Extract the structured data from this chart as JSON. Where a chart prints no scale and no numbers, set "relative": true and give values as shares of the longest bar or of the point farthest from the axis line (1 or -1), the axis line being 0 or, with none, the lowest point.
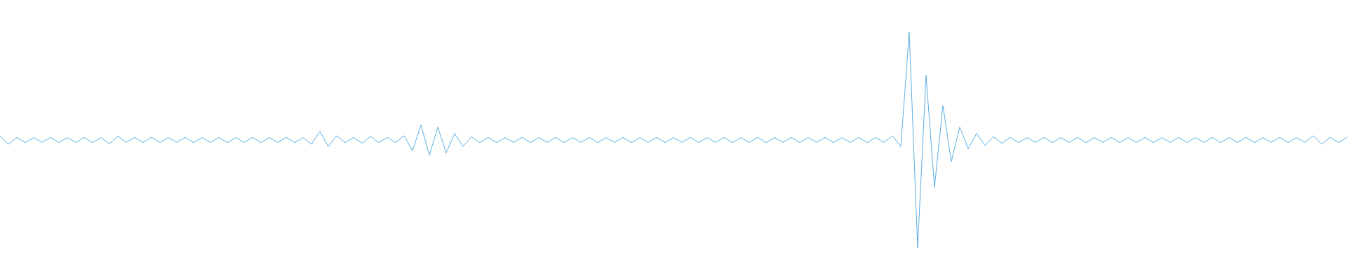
{
  "chart_data": {
    "type": "line",
    "relative": true,
    "categories": [
      null,
      null,
      null,
      null,
      null,
      null,
      null,
      null,
      null,
      null,
      null,
      null,
      null,
      null,
      null,
      null,
      null,
      null,
      null,
      null,
      null,
      null,
      null,
      null,
      null,
      null,
      null,
      null,
      null,
      null,
      null,
      null,
      null,
      null,
      null,
      null,
      null,
      null,
      null,
      null,
      null,
      null,
      null,
      null,
      null,
      null,
      null,
      null,
      null,
      null,
      null,
      null,
      null,
      null,
      null,
      null,
      null,
      null,
      null,
      null,
      null,
      null,
      null,
      null,
      null,
      null,
      null,
      null,
      null,
      null,
      null,
      null,
      null,
      null,
      null,
      null,
      null,
      null,
      null,
      null,
      null,
      null,
      null,
      null,
      null,
      null,
      null,
      null,
      null,
      null,
      null,
      null,
      null,
      null,
      null,
      null,
      null,
      null,
      null,
      null,
      null,
      null,
      null,
      null,
      null,
      null,
      null,
      null,
      null,
      null,
      null,
      null,
      null,
      null,
      null,
      null,
      null,
      null,
      null,
      null,
      null,
      null,
      null,
      null,
      null,
      null,
      null,
      null,
      null,
      null,
      null,
      null,
      null,
      null,
      null,
      null,
      null,
      null,
      null,
      null,
      null,
      null,
      null,
      null,
      null,
      null,
      null,
      null,
      null,
      null,
      null,
      null,
      null,
      null,
      null,
      null,
      null,
      null,
      null,
      null,
      null
    ],
    "series": [
      {
        "color": "#5dade2",
        "values": [
          0.52,
          0.48,
          0.512,
          0.488,
          0.511,
          0.489,
          0.512,
          0.488,
          0.511,
          0.489,
          0.512,
          0.488,
          0.511,
          0.483,
          0.518,
          0.489,
          0.512,
          0.488,
          0.513,
          0.488,
          0.511,
          0.489,
          0.512,
          0.488,
          0.511,
          0.489,
          0.512,
          0.488,
          0.511,
          0.489,
          0.512,
          0.488,
          0.511,
          0.489,
          0.512,
          0.488,
          0.511,
          0.48,
          0.54,
          0.47,
          0.52,
          0.488,
          0.512,
          0.485,
          0.516,
          0.488,
          0.512,
          0.488,
          0.52,
          0.45,
          0.57,
          0.43,
          0.56,
          0.44,
          0.53,
          0.47,
          0.515,
          0.488,
          0.512,
          0.488,
          0.511,
          0.489,
          0.512,
          0.488,
          0.511,
          0.489,
          0.512,
          0.488,
          0.511,
          0.489,
          0.512,
          0.488,
          0.511,
          0.489,
          0.512,
          0.488,
          0.511,
          0.489,
          0.512,
          0.488,
          0.511,
          0.489,
          0.512,
          0.488,
          0.511,
          0.489,
          0.512,
          0.488,
          0.511,
          0.489,
          0.512,
          0.488,
          0.511,
          0.489,
          0.512,
          0.488,
          0.511,
          0.489,
          0.512,
          0.488,
          0.511,
          0.489,
          0.512,
          0.488,
          0.511,
          0.489,
          0.52,
          0.47,
          1,
          0,
          0.8,
          0.28,
          0.66,
          0.4,
          0.56,
          0.46,
          0.53,
          0.475,
          0.515,
          0.485,
          0.512,
          0.488,
          0.511,
          0.489,
          0.512,
          0.488,
          0.511,
          0.489,
          0.512,
          0.488,
          0.511,
          0.489,
          0.512,
          0.488,
          0.511,
          0.489,
          0.512,
          0.488,
          0.511,
          0.489,
          0.512,
          0.488,
          0.511,
          0.489,
          0.512,
          0.488,
          0.511,
          0.489,
          0.512,
          0.488,
          0.511,
          0.489,
          0.512,
          0.488,
          0.511,
          0.489,
          0.52,
          0.48,
          0.512,
          0.488,
          0.512
        ]
      }
    ]
  }
}
